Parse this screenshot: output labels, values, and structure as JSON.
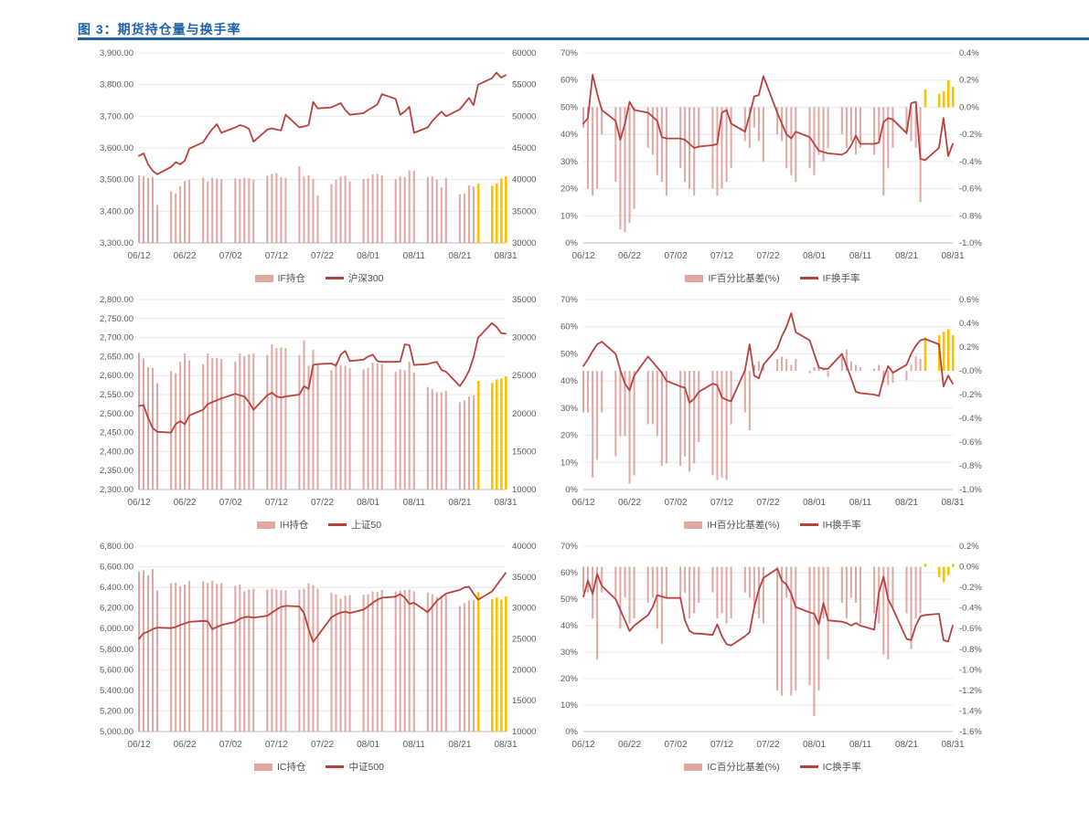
{
  "figure": {
    "title": "图 3：期货持仓量与换手率"
  },
  "colors": {
    "accent": "#1E60A8",
    "bar": "#D9918C",
    "bar_highlight": "#FFC000",
    "line": "#B8413E",
    "grid": "#E8E8E8",
    "axis_line": "#B9B9B9",
    "tick_text": "#595959"
  },
  "x": {
    "tick_labels": [
      "06/12",
      "06/22",
      "07/02",
      "07/12",
      "07/22",
      "08/01",
      "08/11",
      "08/21",
      "08/31"
    ],
    "days": 81,
    "weekend_mod": [
      5,
      6
    ],
    "trading_days": 59
  },
  "chart_data": [
    {
      "name": "IF持仓量与沪深300",
      "type": "bar+line",
      "left_axis": {
        "min": 3300,
        "max": 3900,
        "step": 100,
        "format": "num2"
      },
      "right_axis": {
        "min": 30000,
        "max": 60000,
        "step": 5000,
        "format": "int"
      },
      "bar_axis": "right",
      "line_axis": "left",
      "bar_baseline": "min",
      "highlight_last": 5,
      "legend": [
        {
          "label": "IF持仓",
          "series": "bars"
        },
        {
          "label": "沪深300",
          "series": "line"
        }
      ],
      "bars": [
        40700,
        40500,
        40300,
        40400,
        36000,
        38100,
        37800,
        39000,
        39800,
        40000,
        40300,
        39700,
        40300,
        40200,
        40100,
        40200,
        40100,
        40300,
        40200,
        40000,
        40600,
        40900,
        41000,
        40400,
        40300,
        42100,
        40500,
        40700,
        40100,
        37500,
        39300,
        40000,
        40500,
        40600,
        39700,
        40100,
        40200,
        40800,
        40900,
        40700,
        40100,
        40500,
        40400,
        41500,
        41400,
        40400,
        40500,
        40000,
        38800,
        40300,
        37700,
        37800,
        39100,
        38900,
        39400,
        39000,
        39400,
        40200,
        40500
      ],
      "line": [
        3575,
        3583,
        3548,
        3528,
        3517,
        3540,
        3555,
        3548,
        3560,
        3598,
        3618,
        3640,
        3660,
        3675,
        3648,
        3665,
        3672,
        3668,
        3660,
        3620,
        3658,
        3662,
        3658,
        3655,
        3705,
        3665,
        3668,
        3672,
        3745,
        3725,
        3728,
        3735,
        3742,
        3720,
        3705,
        3710,
        3720,
        3728,
        3738,
        3770,
        3755,
        3705,
        3715,
        3730,
        3648,
        3665,
        3685,
        3700,
        3715,
        3700,
        3722,
        3740,
        3758,
        3735,
        3800,
        3820,
        3838,
        3822,
        3830
      ]
    },
    {
      "name": "IF百分比基差与IF换手率",
      "type": "bar+line",
      "left_axis": {
        "min": 0,
        "max": 70,
        "step": 10,
        "format": "pct0"
      },
      "right_axis": {
        "min": -1.0,
        "max": 0.4,
        "step": 0.2,
        "format": "pct1"
      },
      "bar_axis": "right",
      "line_axis": "left",
      "bar_baseline": "zero",
      "highlight_last": 5,
      "legend": [
        {
          "label": "IF百分比基差(%)",
          "series": "bars"
        },
        {
          "label": "IF换手率",
          "series": "line"
        }
      ],
      "bars": [
        -0.15,
        -0.6,
        -0.65,
        -0.6,
        -0.2,
        -0.55,
        -0.9,
        -0.92,
        -0.85,
        -0.75,
        -0.3,
        -0.35,
        -0.5,
        -0.55,
        -0.65,
        -0.45,
        -0.55,
        -0.6,
        -0.65,
        -0.3,
        -0.6,
        -0.65,
        -0.6,
        -0.55,
        -0.45,
        -0.25,
        -0.3,
        -0.15,
        -0.25,
        -0.4,
        -0.2,
        -0.25,
        -0.45,
        -0.5,
        -0.55,
        -0.45,
        -0.5,
        -0.35,
        -0.4,
        -0.3,
        -0.2,
        -0.3,
        -0.25,
        -0.35,
        -0.3,
        -0.35,
        -0.25,
        -0.65,
        -0.45,
        -0.3,
        -0.2,
        -0.25,
        -0.3,
        -0.7,
        0.13,
        0.1,
        0.12,
        0.2,
        0.15
      ],
      "line": [
        44,
        46,
        62,
        55,
        49,
        45,
        38,
        44,
        52,
        49,
        48,
        46.5,
        45,
        39,
        38.5,
        38.5,
        38,
        36.5,
        35,
        35.5,
        36,
        36.5,
        48,
        49,
        44,
        41,
        47,
        54,
        54.5,
        61.5,
        48,
        44,
        40,
        38.5,
        41,
        39,
        36.5,
        34,
        33.5,
        33,
        32.5,
        33.5,
        36,
        39.5,
        36.5,
        36.5,
        37,
        44.5,
        46,
        45.5,
        40.5,
        51.5,
        52,
        31,
        30.5,
        35,
        46,
        32,
        36.5
      ]
    },
    {
      "name": "IH持仓量与上证50",
      "type": "bar+line",
      "left_axis": {
        "min": 2300,
        "max": 2800,
        "step": 50,
        "format": "num2"
      },
      "right_axis": {
        "min": 10000,
        "max": 35000,
        "step": 5000,
        "format": "int"
      },
      "bar_axis": "right",
      "line_axis": "left",
      "bar_baseline": "min",
      "highlight_last": 5,
      "legend": [
        {
          "label": "IH持仓",
          "series": "bars"
        },
        {
          "label": "上证50",
          "series": "line"
        }
      ],
      "bars": [
        28000,
        27250,
        26100,
        26000,
        24000,
        25600,
        25300,
        26800,
        27900,
        27000,
        26500,
        27900,
        27300,
        27300,
        27200,
        26800,
        27900,
        27500,
        27800,
        27900,
        27700,
        29100,
        28600,
        28700,
        28600,
        27700,
        29600,
        26300,
        28400,
        26400,
        25700,
        26700,
        26400,
        26300,
        26000,
        25800,
        26000,
        26700,
        26600,
        26500,
        25500,
        25800,
        25700,
        26800,
        25400,
        23500,
        23200,
        22800,
        22800,
        23000,
        21500,
        21750,
        22250,
        22400,
        24300,
        24000,
        24500,
        24600,
        24900
      ],
      "line": [
        2520,
        2522,
        2488,
        2462,
        2452,
        2450,
        2472,
        2480,
        2472,
        2495,
        2510,
        2525,
        2530,
        2535,
        2540,
        2552,
        2548,
        2545,
        2530,
        2510,
        2548,
        2555,
        2545,
        2542,
        2545,
        2550,
        2572,
        2565,
        2628,
        2630,
        2632,
        2626,
        2655,
        2665,
        2638,
        2642,
        2650,
        2655,
        2638,
        2636,
        2636,
        2637,
        2682,
        2680,
        2628,
        2630,
        2634,
        2636,
        2615,
        2610,
        2572,
        2590,
        2612,
        2648,
        2700,
        2738,
        2728,
        2712,
        2710
      ]
    },
    {
      "name": "IH百分比基差与IH换手率",
      "type": "bar+line",
      "left_axis": {
        "min": 0,
        "max": 70,
        "step": 10,
        "format": "pct0"
      },
      "right_axis": {
        "min": -1.0,
        "max": 0.6,
        "step": 0.2,
        "format": "pct1"
      },
      "bar_axis": "right",
      "line_axis": "left",
      "bar_baseline": "zero",
      "highlight_last": 5,
      "legend": [
        {
          "label": "IH百分比基差(%)",
          "series": "bars"
        },
        {
          "label": "IH换手率",
          "series": "line"
        }
      ],
      "bars": [
        -0.35,
        -0.35,
        -0.9,
        -0.75,
        -0.35,
        -0.72,
        -0.55,
        -0.55,
        -0.95,
        -0.88,
        -0.45,
        -0.45,
        -0.55,
        -0.8,
        -0.78,
        -0.8,
        -0.72,
        -0.85,
        -0.78,
        -0.6,
        -0.88,
        -0.92,
        -0.9,
        -0.92,
        -0.45,
        -0.35,
        -0.5,
        0.05,
        0.08,
        0.05,
        0.1,
        0.12,
        0.1,
        0.05,
        0.1,
        -0.02,
        0.03,
        0.05,
        0.02,
        -0.05,
        0.12,
        0.18,
        0.08,
        0.05,
        0.03,
        0.02,
        0.05,
        -0.1,
        -0.12,
        -0.1,
        -0.08,
        0.05,
        0.12,
        0.1,
        0.28,
        0.3,
        0.33,
        0.35,
        0.3
      ],
      "line": [
        45.5,
        48,
        51,
        53.5,
        54.5,
        50,
        44,
        39,
        36.5,
        42,
        49,
        47,
        45,
        43,
        40,
        38,
        37.5,
        32,
        33.5,
        36,
        39,
        38.5,
        34,
        33,
        32.5,
        44,
        53.5,
        42,
        41,
        46,
        52,
        56.5,
        60,
        65,
        58,
        55,
        50,
        45,
        44.5,
        44.5,
        50,
        45.5,
        41,
        36,
        35.5,
        35,
        34.5,
        41,
        45.5,
        43,
        46,
        50,
        53,
        55,
        55.5,
        53.5,
        38,
        42,
        39
      ]
    },
    {
      "name": "IC持仓量与中证500",
      "type": "bar+line",
      "left_axis": {
        "min": 5000,
        "max": 6800,
        "step": 200,
        "format": "num2"
      },
      "right_axis": {
        "min": 10000,
        "max": 40000,
        "step": 5000,
        "format": "int"
      },
      "bar_axis": "right",
      "line_axis": "left",
      "bar_baseline": "min",
      "highlight_last": 5,
      "legend": [
        {
          "label": "IC持仓",
          "series": "bars"
        },
        {
          "label": "中证500",
          "series": "line"
        }
      ],
      "bars": [
        35900,
        36100,
        35300,
        36300,
        32800,
        34000,
        34100,
        33500,
        33800,
        34400,
        34300,
        34050,
        34400,
        33900,
        34050,
        33600,
        33800,
        32700,
        33000,
        33100,
        33000,
        33150,
        33000,
        32900,
        32800,
        33000,
        33100,
        34000,
        33700,
        33100,
        32500,
        32200,
        31500,
        32000,
        32100,
        32150,
        32200,
        32700,
        32600,
        32900,
        32700,
        32800,
        32900,
        33000,
        32700,
        32500,
        32250,
        31800,
        32100,
        32200,
        30300,
        30800,
        31200,
        31300,
        32580,
        31400,
        31700,
        31350,
        31850
      ],
      "line": [
        5900,
        5955,
        5970,
        5995,
        6010,
        6005,
        6015,
        6035,
        6050,
        6065,
        6075,
        6070,
        5995,
        6015,
        6035,
        6065,
        6095,
        6110,
        6115,
        6105,
        6125,
        6155,
        6185,
        6210,
        6220,
        6215,
        6150,
        5995,
        5870,
        5930,
        6110,
        6135,
        6155,
        6165,
        6150,
        6185,
        6215,
        6250,
        6280,
        6300,
        6310,
        6335,
        6300,
        6240,
        6250,
        6160,
        6215,
        6270,
        6305,
        6340,
        6375,
        6400,
        6405,
        6340,
        6280,
        6360,
        6420,
        6480,
        6540
      ]
    },
    {
      "name": "IC百分比基差与IC换手率",
      "type": "bar+line",
      "left_axis": {
        "min": 0,
        "max": 70,
        "step": 10,
        "format": "pct0"
      },
      "right_axis": {
        "min": -1.6,
        "max": 0.2,
        "step": 0.2,
        "format": "pct1"
      },
      "bar_axis": "right",
      "line_axis": "left",
      "bar_baseline": "zero",
      "highlight_last": 5,
      "legend": [
        {
          "label": "IC百分比基差(%)",
          "series": "bars"
        },
        {
          "label": "IC换手率",
          "series": "line"
        }
      ],
      "bars": [
        -0.25,
        -0.25,
        -0.5,
        -0.9,
        -0.25,
        -0.3,
        -0.6,
        -0.3,
        -0.55,
        -0.5,
        -0.35,
        -0.3,
        -0.6,
        -0.75,
        -0.3,
        -0.3,
        -0.25,
        -0.5,
        -0.45,
        -0.35,
        -0.25,
        -0.5,
        -0.45,
        -0.55,
        -0.5,
        -0.25,
        -0.3,
        -0.4,
        -0.5,
        -0.55,
        -1.2,
        -1.25,
        -0.3,
        -1.25,
        -1.2,
        -1.15,
        -1.45,
        -1.2,
        -0.5,
        -0.9,
        -0.35,
        -0.5,
        -0.3,
        -0.35,
        -0.55,
        -0.45,
        -0.55,
        -0.85,
        -0.9,
        -0.4,
        -0.45,
        -0.8,
        -0.5,
        -0.45,
        0.03,
        -0.1,
        -0.15,
        -0.08,
        0.03
      ],
      "line": [
        51,
        57,
        52,
        59.5,
        55,
        50,
        46,
        42,
        38,
        40,
        44,
        47,
        51.5,
        51,
        50.5,
        50.5,
        42,
        38,
        37,
        37,
        36.5,
        40.5,
        36,
        33,
        32.5,
        36,
        37.5,
        47,
        53.5,
        58,
        61.5,
        57,
        55.5,
        52,
        47,
        45,
        44.5,
        40.5,
        48.5,
        42,
        41.5,
        41,
        40,
        41,
        40,
        38.5,
        52.5,
        58.5,
        50,
        46.5,
        35,
        34.5,
        40,
        43.5,
        44,
        44.5,
        34.5,
        34,
        40
      ]
    }
  ]
}
